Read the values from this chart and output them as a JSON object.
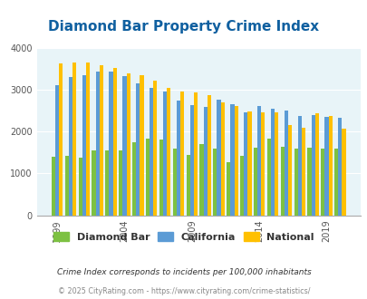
{
  "title": "Diamond Bar Property Crime Index",
  "years": [
    1999,
    2000,
    2001,
    2002,
    2003,
    2004,
    2005,
    2006,
    2007,
    2008,
    2009,
    2010,
    2011,
    2012,
    2013,
    2014,
    2015,
    2016,
    2017,
    2018,
    2019,
    2020
  ],
  "diamond_bar": [
    1400,
    1430,
    1370,
    1560,
    1550,
    1560,
    1750,
    1840,
    1800,
    1590,
    1440,
    1700,
    1590,
    1270,
    1430,
    1620,
    1840,
    1640,
    1590,
    1620,
    1600,
    1590
  ],
  "california": [
    3100,
    3310,
    3350,
    3430,
    3430,
    3330,
    3160,
    3050,
    2950,
    2750,
    2640,
    2580,
    2760,
    2650,
    2450,
    2620,
    2540,
    2500,
    2380,
    2390,
    2350,
    2330
  ],
  "national": [
    3620,
    3650,
    3650,
    3590,
    3510,
    3390,
    3340,
    3220,
    3050,
    2960,
    2940,
    2880,
    2700,
    2600,
    2490,
    2460,
    2450,
    2160,
    2090,
    2440,
    2370,
    2080
  ],
  "bar_colors": {
    "diamond_bar": "#7dc142",
    "california": "#5b9bd5",
    "national": "#ffc000"
  },
  "background_color": "#e8f4f8",
  "title_color": "#1060a0",
  "ylim": [
    0,
    4000
  ],
  "yticks": [
    0,
    1000,
    2000,
    3000,
    4000
  ],
  "xtick_years": [
    1999,
    2004,
    2009,
    2014,
    2019
  ],
  "legend_labels": [
    "Diamond Bar",
    "California",
    "National"
  ],
  "note": "Crime Index corresponds to incidents per 100,000 inhabitants",
  "footer": "© 2025 CityRating.com - https://www.cityrating.com/crime-statistics/",
  "note_color": "#333333",
  "footer_color": "#888888"
}
